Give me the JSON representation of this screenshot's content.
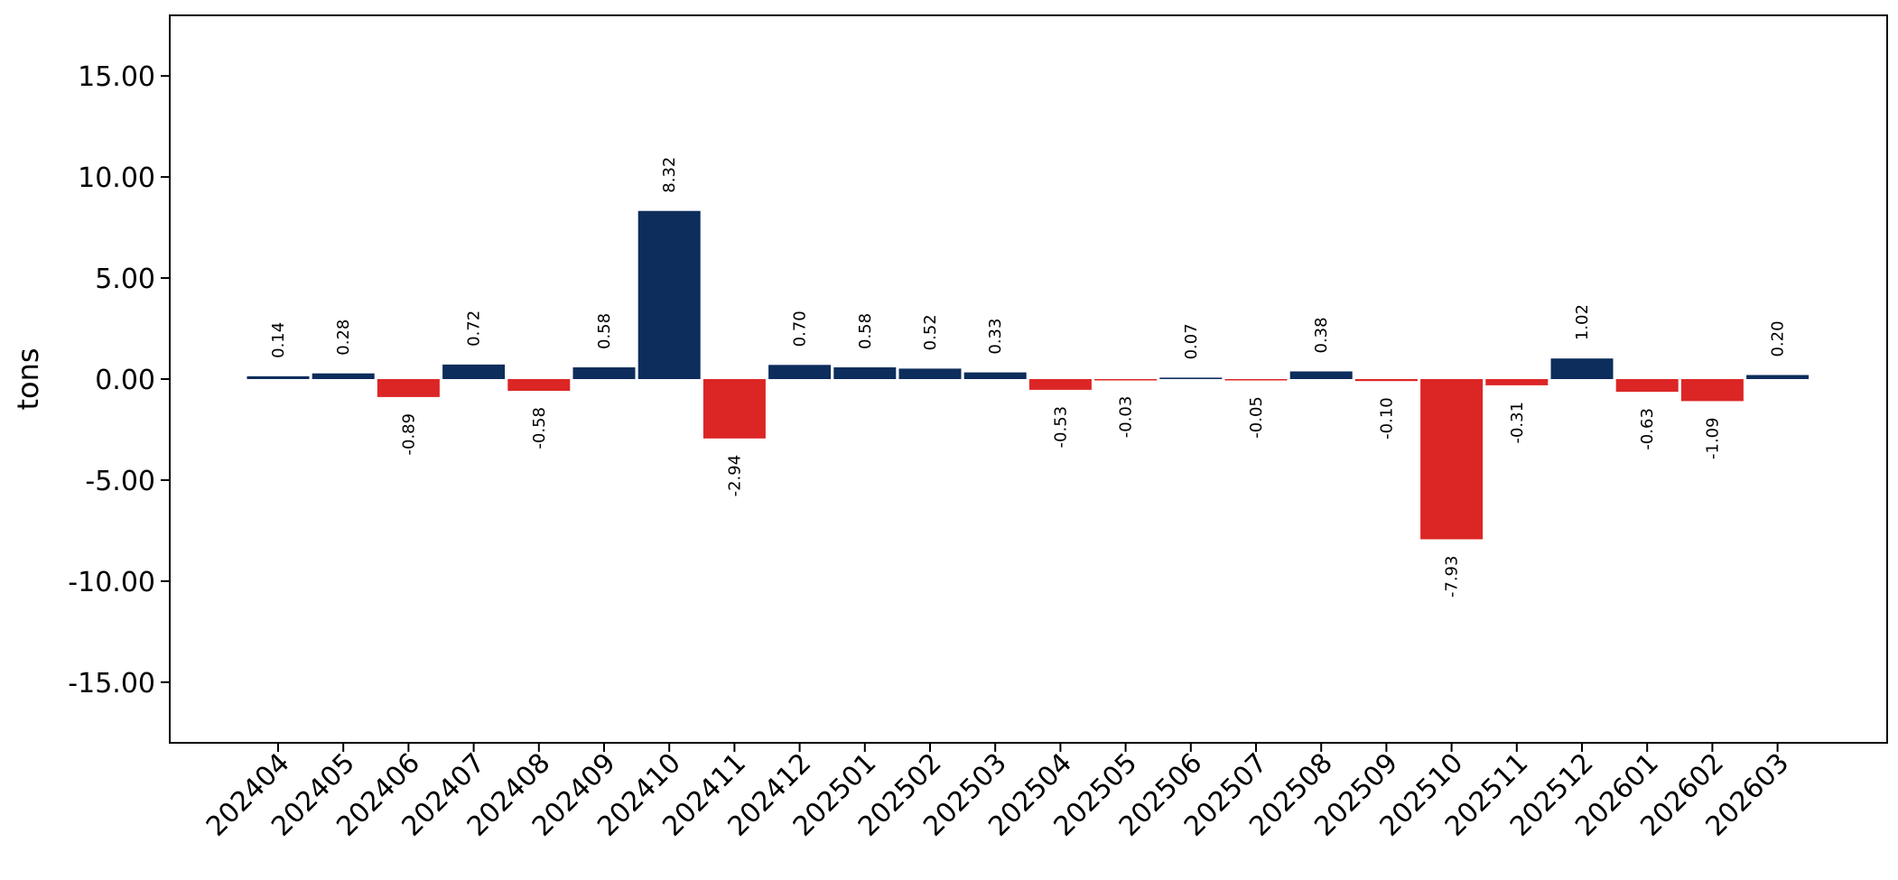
{
  "chart_data": {
    "type": "bar",
    "ylabel": "tons",
    "xlabel": "",
    "title": "",
    "ylim": [
      -18,
      18
    ],
    "yticks": [
      15,
      10,
      5,
      0,
      -5,
      -10,
      -15
    ],
    "ytick_labels": [
      "15.00",
      "10.00",
      "5.00",
      "0.00",
      "-5.00",
      "-10.00",
      "-15.00"
    ],
    "grid": false,
    "colors": {
      "positive": "#0d2d5c",
      "negative": "#dc2626"
    },
    "categories": [
      "202404",
      "202405",
      "202406",
      "202407",
      "202408",
      "202409",
      "202410",
      "202411",
      "202412",
      "202501",
      "202502",
      "202503",
      "202504",
      "202505",
      "202506",
      "202507",
      "202508",
      "202509",
      "202510",
      "202511",
      "202512",
      "202601",
      "202602",
      "202603"
    ],
    "values": [
      0.14,
      0.28,
      -0.89,
      0.72,
      -0.58,
      0.58,
      8.32,
      -2.94,
      0.7,
      0.58,
      0.52,
      0.33,
      -0.53,
      -0.03,
      0.07,
      -0.05,
      0.38,
      -0.1,
      -7.93,
      -0.31,
      1.02,
      -0.63,
      -1.09,
      0.2
    ],
    "value_labels": [
      "0.14",
      "0.28",
      "-0.89",
      "0.72",
      "-0.58",
      "0.58",
      "8.32",
      "-2.94",
      "0.70",
      "0.58",
      "0.52",
      "0.33",
      "-0.53",
      "-0.03",
      "0.07",
      "-0.05",
      "0.38",
      "-0.10",
      "-7.93",
      "-0.31",
      "1.02",
      "-0.63",
      "-1.09",
      "0.20"
    ]
  }
}
